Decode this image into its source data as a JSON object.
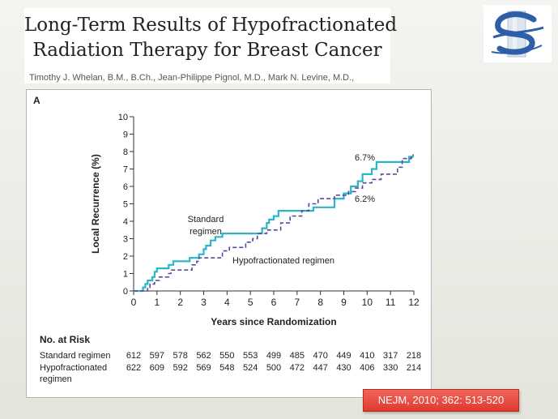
{
  "slide": {
    "title_line1": "Long-Term Results of Hypofractionated",
    "title_line2": "Radiation Therapy for Breast Cancer",
    "authors": "Timothy J. Whelan, B.M., B.Ch., Jean-Philippe Pignol, M.D., Mark N. Levine, M.D.,",
    "citation": "NEJM, 2010; 362: 513-520",
    "logo_icon": "stylized-s-logo-icon"
  },
  "figure": {
    "panel_label": "A"
  },
  "chart_data": {
    "type": "line",
    "xlabel": "Years since Randomization",
    "ylabel": "Local Recurrence (%)",
    "xlim": [
      0,
      12
    ],
    "ylim": [
      0,
      10
    ],
    "x_ticks": [
      "0",
      "1",
      "2",
      "3",
      "4",
      "5",
      "6",
      "7",
      "8",
      "9",
      "10",
      "11",
      "12"
    ],
    "y_ticks": [
      "0",
      "1",
      "2",
      "3",
      "4",
      "5",
      "6",
      "7",
      "8",
      "9",
      "10"
    ],
    "grid": false,
    "colors": {
      "standard": "#2bb5c9",
      "hypofractionated": "#5a4a9a"
    },
    "series": [
      {
        "name": "Standard regimen",
        "label_lines": [
          "Standard",
          "regimen"
        ],
        "style": "solid",
        "end_label": "6.7%",
        "points": [
          [
            0,
            0
          ],
          [
            0.4,
            0
          ],
          [
            0.4,
            0.2
          ],
          [
            0.5,
            0.2
          ],
          [
            0.5,
            0.4
          ],
          [
            0.6,
            0.4
          ],
          [
            0.6,
            0.6
          ],
          [
            0.8,
            0.6
          ],
          [
            0.8,
            0.8
          ],
          [
            0.9,
            0.8
          ],
          [
            0.9,
            1.1
          ],
          [
            1.0,
            1.1
          ],
          [
            1.0,
            1.3
          ],
          [
            1.5,
            1.3
          ],
          [
            1.5,
            1.5
          ],
          [
            1.7,
            1.5
          ],
          [
            1.7,
            1.7
          ],
          [
            2.4,
            1.7
          ],
          [
            2.4,
            1.9
          ],
          [
            2.8,
            1.9
          ],
          [
            2.8,
            2.1
          ],
          [
            3.0,
            2.1
          ],
          [
            3.0,
            2.4
          ],
          [
            3.1,
            2.4
          ],
          [
            3.1,
            2.6
          ],
          [
            3.3,
            2.6
          ],
          [
            3.3,
            2.9
          ],
          [
            3.5,
            2.9
          ],
          [
            3.5,
            3.1
          ],
          [
            3.8,
            3.1
          ],
          [
            3.8,
            3.3
          ],
          [
            5.5,
            3.3
          ],
          [
            5.5,
            3.6
          ],
          [
            5.7,
            3.6
          ],
          [
            5.7,
            3.9
          ],
          [
            5.8,
            3.9
          ],
          [
            5.8,
            4.1
          ],
          [
            6.0,
            4.1
          ],
          [
            6.0,
            4.3
          ],
          [
            6.2,
            4.3
          ],
          [
            6.2,
            4.6
          ],
          [
            7.7,
            4.6
          ],
          [
            7.7,
            4.8
          ],
          [
            8.6,
            4.8
          ],
          [
            8.6,
            5.3
          ],
          [
            9.0,
            5.3
          ],
          [
            9.0,
            5.6
          ],
          [
            9.3,
            5.6
          ],
          [
            9.3,
            6.0
          ],
          [
            9.6,
            6.0
          ],
          [
            9.6,
            6.3
          ],
          [
            9.8,
            6.3
          ],
          [
            9.8,
            6.7
          ],
          [
            10.2,
            6.7
          ],
          [
            10.2,
            7.0
          ],
          [
            10.4,
            7.0
          ],
          [
            10.4,
            7.4
          ],
          [
            11.8,
            7.4
          ],
          [
            11.8,
            7.7
          ],
          [
            12.0,
            7.7
          ]
        ]
      },
      {
        "name": "Hypofractionated regimen",
        "label_lines": [
          "Hypofractionated regimen"
        ],
        "style": "dashed",
        "end_label": "6.2%",
        "points": [
          [
            0,
            0
          ],
          [
            0.6,
            0
          ],
          [
            0.6,
            0.2
          ],
          [
            0.7,
            0.2
          ],
          [
            0.7,
            0.4
          ],
          [
            0.9,
            0.4
          ],
          [
            0.9,
            0.6
          ],
          [
            1.1,
            0.6
          ],
          [
            1.1,
            0.8
          ],
          [
            1.5,
            0.8
          ],
          [
            1.5,
            1.0
          ],
          [
            1.6,
            1.0
          ],
          [
            1.6,
            1.2
          ],
          [
            2.5,
            1.2
          ],
          [
            2.5,
            1.5
          ],
          [
            2.7,
            1.5
          ],
          [
            2.7,
            1.7
          ],
          [
            2.8,
            1.7
          ],
          [
            2.8,
            1.9
          ],
          [
            3.8,
            1.9
          ],
          [
            3.8,
            2.3
          ],
          [
            4.1,
            2.3
          ],
          [
            4.1,
            2.5
          ],
          [
            4.8,
            2.5
          ],
          [
            4.8,
            2.8
          ],
          [
            5.1,
            2.8
          ],
          [
            5.1,
            3.0
          ],
          [
            5.3,
            3.0
          ],
          [
            5.3,
            3.3
          ],
          [
            5.7,
            3.3
          ],
          [
            5.7,
            3.5
          ],
          [
            6.3,
            3.5
          ],
          [
            6.3,
            3.9
          ],
          [
            6.7,
            3.9
          ],
          [
            6.7,
            4.3
          ],
          [
            7.2,
            4.3
          ],
          [
            7.2,
            4.6
          ],
          [
            7.5,
            4.6
          ],
          [
            7.5,
            5.0
          ],
          [
            7.9,
            5.0
          ],
          [
            7.9,
            5.3
          ],
          [
            8.6,
            5.3
          ],
          [
            8.6,
            5.5
          ],
          [
            9.2,
            5.5
          ],
          [
            9.2,
            5.7
          ],
          [
            9.5,
            5.7
          ],
          [
            9.5,
            5.9
          ],
          [
            9.8,
            5.9
          ],
          [
            9.8,
            6.2
          ],
          [
            10.2,
            6.2
          ],
          [
            10.2,
            6.4
          ],
          [
            10.6,
            6.4
          ],
          [
            10.6,
            6.7
          ],
          [
            11.3,
            6.7
          ],
          [
            11.3,
            7.1
          ],
          [
            11.5,
            7.1
          ],
          [
            11.5,
            7.6
          ],
          [
            11.9,
            7.6
          ],
          [
            11.9,
            7.8
          ],
          [
            12.0,
            7.8
          ]
        ]
      }
    ]
  },
  "risk_table": {
    "title": "No. at Risk",
    "rows": [
      {
        "label": "Standard regimen",
        "values": [
          "612",
          "597",
          "578",
          "562",
          "550",
          "553",
          "499",
          "485",
          "470",
          "449",
          "410",
          "317",
          "218"
        ]
      },
      {
        "label_lines": [
          "Hypofractionated",
          "regimen"
        ],
        "values": [
          "622",
          "609",
          "592",
          "569",
          "548",
          "524",
          "500",
          "472",
          "447",
          "430",
          "406",
          "330",
          "214"
        ]
      }
    ]
  }
}
